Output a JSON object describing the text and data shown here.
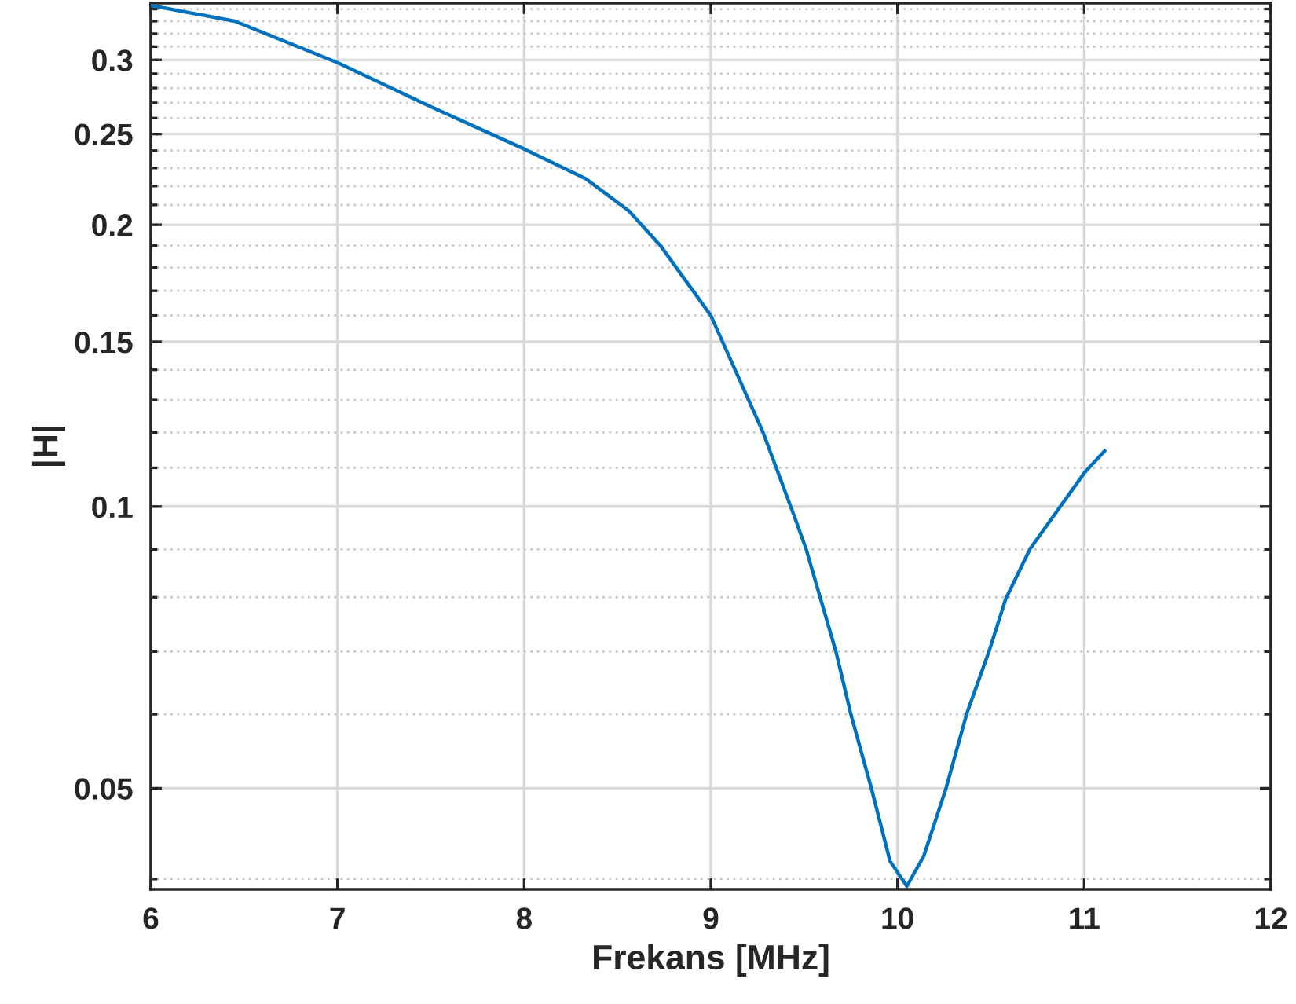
{
  "chart_data": {
    "type": "line",
    "xlabel": "Frekans [MHz]",
    "ylabel": "|H|",
    "log": "y",
    "grid": true,
    "marker": "none",
    "line_style": "solid",
    "xlim": [
      6,
      12
    ],
    "xticks": [
      6,
      7,
      8,
      9,
      10,
      11,
      12
    ],
    "ylim": [
      0.039,
      0.345
    ],
    "yticks": [
      {
        "value": 0.04,
        "label": null
      },
      0.05,
      {
        "value": 0.06,
        "label": null
      },
      {
        "value": 0.07,
        "label": null
      },
      {
        "value": 0.08,
        "label": null
      },
      {
        "value": 0.09,
        "label": null
      },
      0.1,
      {
        "value": 0.11,
        "label": null
      },
      {
        "value": 0.12,
        "label": null
      },
      {
        "value": 0.13,
        "label": null
      },
      {
        "value": 0.14,
        "label": null
      },
      0.15,
      {
        "value": 0.16,
        "label": null
      },
      {
        "value": 0.17,
        "label": null
      },
      {
        "value": 0.18,
        "label": null
      },
      {
        "value": 0.19,
        "label": null
      },
      0.2,
      {
        "value": 0.21,
        "label": null
      },
      {
        "value": 0.22,
        "label": null
      },
      {
        "value": 0.23,
        "label": null
      },
      {
        "value": 0.24,
        "label": null
      },
      0.25,
      {
        "value": 0.26,
        "label": null
      },
      {
        "value": 0.27,
        "label": null
      },
      {
        "value": 0.28,
        "label": null
      },
      {
        "value": 0.29,
        "label": null
      },
      0.3,
      {
        "value": 0.31,
        "label": null
      },
      {
        "value": 0.32,
        "label": null
      },
      {
        "value": 0.33,
        "label": null
      },
      {
        "value": 0.34,
        "label": null
      }
    ],
    "series": [
      {
        "color": "#0072bd",
        "x": [
          6.0,
          6.45,
          7.0,
          7.49,
          8.0,
          8.33,
          8.56,
          8.73,
          9.0,
          9.28,
          9.45,
          9.51,
          9.67,
          9.75,
          9.86,
          9.96,
          10.05,
          10.14,
          10.26,
          10.37,
          10.49,
          10.58,
          10.71,
          11.0,
          11.11
        ],
        "values": [
          0.343,
          0.33,
          0.298,
          0.268,
          0.241,
          0.224,
          0.207,
          0.19,
          0.16,
          0.12,
          0.0973,
          0.0901,
          0.07,
          0.06,
          0.05,
          0.0418,
          0.0393,
          0.0423,
          0.05,
          0.06,
          0.07,
          0.0797,
          0.0901,
          0.1086,
          0.1147
        ]
      }
    ]
  }
}
